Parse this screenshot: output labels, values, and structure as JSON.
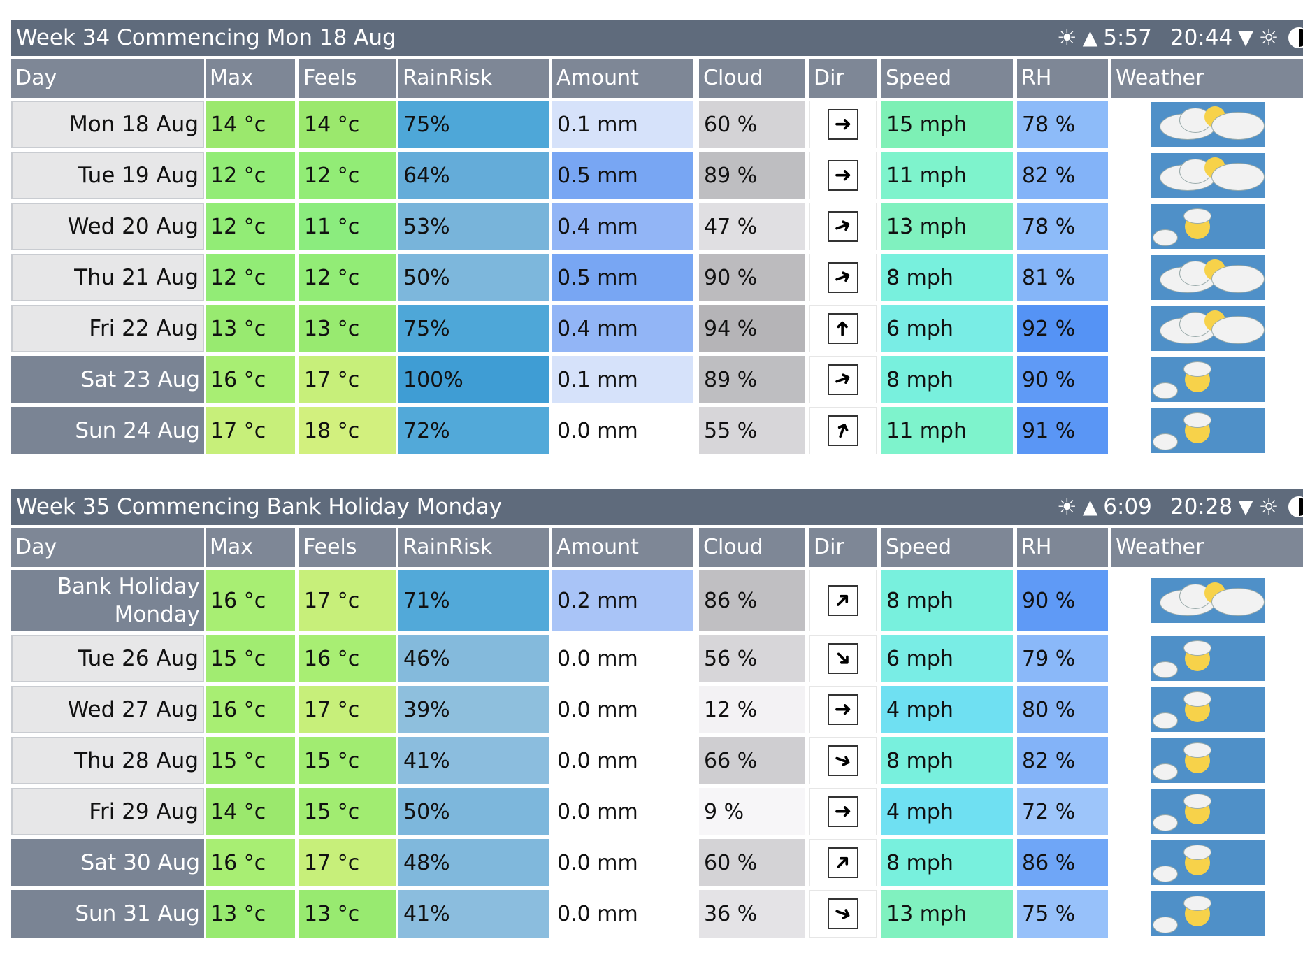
{
  "columns": [
    "Day",
    "Max",
    "Feels",
    "RainRisk",
    "Amount",
    "Cloud",
    "Dir",
    "Speed",
    "RH",
    "Weather"
  ],
  "weeks": [
    {
      "title": "Week 34 Commencing Mon 18 Aug",
      "sunrise": "5:57",
      "sunset": "20:44",
      "rows": [
        {
          "day": "Mon 18 Aug",
          "max": "14 °c",
          "feels": "14 °c",
          "rain": "75%",
          "amount": "0.1 mm",
          "cloud": "60 %",
          "dir": "east",
          "speed": "15 mph",
          "rh": "78 %",
          "weather": "sunny-intervals-icon",
          "weekend": false,
          "colors": {
            "max": "#9be86d",
            "feels": "#9be86d",
            "rain": "#4ea7d8",
            "amount": "#d6e2fa",
            "cloud": "#d4d3d6",
            "speed": "#7df0b5",
            "rh": "#8dbbf9"
          }
        },
        {
          "day": "Tue 19 Aug",
          "max": "12 °c",
          "feels": "12 °c",
          "rain": "64%",
          "amount": "0.5 mm",
          "cloud": "89 %",
          "dir": "east",
          "speed": "11 mph",
          "rh": "82 %",
          "weather": "sunny-intervals-icon",
          "weekend": false,
          "colors": {
            "max": "#92ec76",
            "feels": "#92ec76",
            "rain": "#64acd9",
            "amount": "#78a6f3",
            "cloud": "#bebec1",
            "speed": "#7ef3cc",
            "rh": "#83b3f8"
          }
        },
        {
          "day": "Wed 20 Aug",
          "max": "12 °c",
          "feels": "11 °c",
          "rain": "53%",
          "amount": "0.4 mm",
          "cloud": "47 %",
          "dir": "east-northeast",
          "speed": "13 mph",
          "rh": "78 %",
          "weather": "light-cloud-icon",
          "weekend": false,
          "colors": {
            "max": "#92ec76",
            "feels": "#8bec7e",
            "rain": "#78b4da",
            "amount": "#92b5f6",
            "cloud": "#e0dfe2",
            "speed": "#80f1bf",
            "rh": "#8dbbf9"
          }
        },
        {
          "day": "Thu 21 Aug",
          "max": "12 °c",
          "feels": "12 °c",
          "rain": "50%",
          "amount": "0.5 mm",
          "cloud": "90 %",
          "dir": "east-northeast",
          "speed": "8 mph",
          "rh": "81 %",
          "weather": "sunny-intervals-icon",
          "weekend": false,
          "colors": {
            "max": "#92ec76",
            "feels": "#92ec76",
            "rain": "#7db7dc",
            "amount": "#78a6f3",
            "cloud": "#bcbbbe",
            "speed": "#78f0dd",
            "rh": "#85b5f8"
          }
        },
        {
          "day": "Fri 22 Aug",
          "max": "13 °c",
          "feels": "13 °c",
          "rain": "75%",
          "amount": "0.4 mm",
          "cloud": "94 %",
          "dir": "north",
          "speed": "6 mph",
          "rh": "92 %",
          "weather": "sunny-intervals-icon",
          "weekend": false,
          "colors": {
            "max": "#98ea70",
            "feels": "#98ea70",
            "rain": "#4ea7d8",
            "amount": "#92b5f6",
            "cloud": "#b5b4b7",
            "speed": "#79ede5",
            "rh": "#5593f5"
          }
        },
        {
          "day": "Sat 23 Aug",
          "max": "16 °c",
          "feels": "17 °c",
          "rain": "100%",
          "amount": "0.1 mm",
          "cloud": "89 %",
          "dir": "east-northeast",
          "speed": "8 mph",
          "rh": "90 %",
          "weather": "light-cloud-icon",
          "weekend": true,
          "colors": {
            "max": "#a8ee73",
            "feels": "#c7ef7a",
            "rain": "#3f9dd4",
            "amount": "#d6e2fa",
            "cloud": "#bebec1",
            "speed": "#78f0dd",
            "rh": "#5f9af6"
          }
        },
        {
          "day": "Sun 24 Aug",
          "max": "17 °c",
          "feels": "18 °c",
          "rain": "72%",
          "amount": "0.0 mm",
          "cloud": "55 %",
          "dir": "north-northeast",
          "speed": "11 mph",
          "rh": "91 %",
          "weather": "light-cloud-icon",
          "weekend": true,
          "colors": {
            "max": "#c7ef7a",
            "feels": "#d2f07e",
            "rain": "#52a9d9",
            "amount": "#ffffff",
            "cloud": "#d7d6d9",
            "speed": "#7ef3cc",
            "rh": "#5a96f5"
          }
        }
      ]
    },
    {
      "title": "Week 35 Commencing Bank Holiday Monday",
      "sunrise": "6:09",
      "sunset": "20:28",
      "rows": [
        {
          "day": "Bank Holiday Monday",
          "day_line1": "Bank Holiday",
          "day_line2": "Monday",
          "max": "16 °c",
          "feels": "17 °c",
          "rain": "71%",
          "amount": "0.2 mm",
          "cloud": "86 %",
          "dir": "northeast",
          "speed": "8 mph",
          "rh": "90 %",
          "weather": "sunny-intervals-icon",
          "weekend": true,
          "colors": {
            "max": "#a8ee73",
            "feels": "#c7ef7a",
            "rain": "#52a9d9",
            "amount": "#a9c4f7",
            "cloud": "#c0bfc2",
            "speed": "#78f0dd",
            "rh": "#5f9af6"
          }
        },
        {
          "day": "Tue 26 Aug",
          "max": "15 °c",
          "feels": "16 °c",
          "rain": "46%",
          "amount": "0.0 mm",
          "cloud": "56 %",
          "dir": "southeast",
          "speed": "6 mph",
          "rh": "79 %",
          "weather": "light-cloud-icon",
          "weekend": false,
          "colors": {
            "max": "#a1ec71",
            "feels": "#a8ee73",
            "rain": "#84badc",
            "amount": "#ffffff",
            "cloud": "#d7d6d9",
            "speed": "#79ede5",
            "rh": "#8ab8f9"
          }
        },
        {
          "day": "Wed 27 Aug",
          "max": "16 °c",
          "feels": "17 °c",
          "rain": "39%",
          "amount": "0.0 mm",
          "cloud": "12 %",
          "dir": "east",
          "speed": "4 mph",
          "rh": "80 %",
          "weather": "light-cloud-icon",
          "weekend": false,
          "colors": {
            "max": "#a8ee73",
            "feels": "#c7ef7a",
            "rain": "#8ebfdd",
            "amount": "#ffffff",
            "cloud": "#f3f2f4",
            "speed": "#6fe0f2",
            "rh": "#88b6f8"
          }
        },
        {
          "day": "Thu 28 Aug",
          "max": "15 °c",
          "feels": "15 °c",
          "rain": "41%",
          "amount": "0.0 mm",
          "cloud": "66 %",
          "dir": "east-southeast",
          "speed": "8 mph",
          "rh": "82 %",
          "weather": "light-cloud-icon",
          "weekend": false,
          "colors": {
            "max": "#a1ec71",
            "feels": "#a1ec71",
            "rain": "#8bbdde",
            "amount": "#ffffff",
            "cloud": "#cfced1",
            "speed": "#78f0dd",
            "rh": "#83b3f8"
          }
        },
        {
          "day": "Fri 29 Aug",
          "max": "14 °c",
          "feels": "15 °c",
          "rain": "50%",
          "amount": "0.0 mm",
          "cloud": "9 %",
          "dir": "east",
          "speed": "4 mph",
          "rh": "72 %",
          "weather": "light-cloud-icon",
          "weekend": false,
          "colors": {
            "max": "#9be86d",
            "feels": "#a1ec71",
            "rain": "#7db7dc",
            "amount": "#ffffff",
            "cloud": "#f7f6f8",
            "speed": "#6fe0f2",
            "rh": "#9dc5fa"
          }
        },
        {
          "day": "Sat 30 Aug",
          "max": "16 °c",
          "feels": "17 °c",
          "rain": "48%",
          "amount": "0.0 mm",
          "cloud": "60 %",
          "dir": "northeast",
          "speed": "8 mph",
          "rh": "86 %",
          "weather": "light-cloud-icon",
          "weekend": true,
          "colors": {
            "max": "#a8ee73",
            "feels": "#c7ef7a",
            "rain": "#80b8dc",
            "amount": "#ffffff",
            "cloud": "#d4d3d6",
            "speed": "#78f0dd",
            "rh": "#6fa6f7"
          }
        },
        {
          "day": "Sun 31 Aug",
          "max": "13 °c",
          "feels": "13 °c",
          "rain": "41%",
          "amount": "0.0 mm",
          "cloud": "36 %",
          "dir": "east-southeast",
          "speed": "13 mph",
          "rh": "75 %",
          "weather": "light-cloud-icon",
          "weekend": true,
          "colors": {
            "max": "#98ea70",
            "feels": "#98ea70",
            "rain": "#8bbdde",
            "amount": "#ffffff",
            "cloud": "#e4e3e6",
            "speed": "#80f1bf",
            "rh": "#97c1fa"
          }
        }
      ]
    }
  ],
  "icons": {
    "sunrise": "sunrise-icon",
    "sunset": "sunset-icon",
    "moon": "moon-phase-icon"
  }
}
